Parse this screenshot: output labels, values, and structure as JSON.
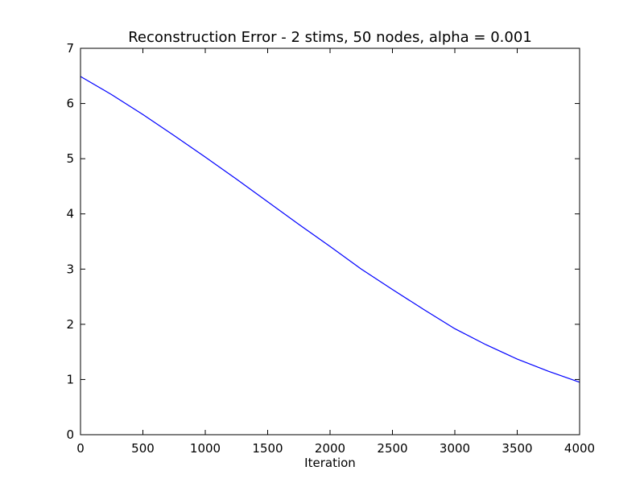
{
  "chart_data": {
    "type": "line",
    "title": "Reconstruction Error - 2 stims, 50 nodes, alpha = 0.001",
    "xlabel": "Iteration",
    "ylabel": "",
    "xlim": [
      0,
      4000
    ],
    "ylim": [
      0,
      7
    ],
    "xticks": [
      0,
      500,
      1000,
      1500,
      2000,
      2500,
      3000,
      3500,
      4000
    ],
    "yticks": [
      0,
      1,
      2,
      3,
      4,
      5,
      6,
      7
    ],
    "grid": false,
    "colors": {
      "line": "#0000ff",
      "axes": "#000000"
    },
    "series": [
      {
        "x": [
          0,
          250,
          500,
          750,
          1000,
          1250,
          1500,
          1750,
          2000,
          2250,
          2500,
          2750,
          3000,
          3250,
          3500,
          3750,
          4000
        ],
        "y": [
          6.49,
          6.16,
          5.8,
          5.42,
          5.03,
          4.63,
          4.22,
          3.81,
          3.41,
          3.0,
          2.63,
          2.27,
          1.92,
          1.63,
          1.37,
          1.15,
          0.95
        ]
      }
    ]
  }
}
